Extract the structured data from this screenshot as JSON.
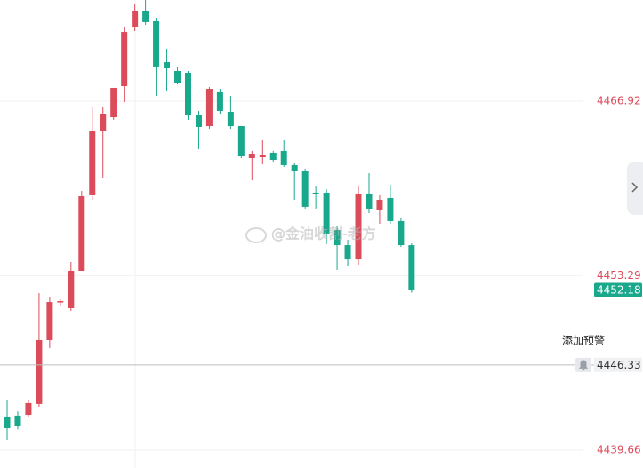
{
  "chart_data": {
    "type": "candlestick",
    "open": [
      4442.23,
      4442.37,
      4442.43,
      4443.27,
      4448.26,
      4451.24,
      4450.76,
      4453.67,
      4459.57,
      4464.63,
      4465.67,
      4468.1,
      4472.75,
      4474.0,
      4473.17,
      4469.97,
      4469.28,
      4469.14,
      4465.81,
      4464.98,
      4467.62,
      4466.09,
      4464.98,
      4462.48,
      4462.55,
      4462.9,
      4463.04,
      4461.93,
      4461.51,
      4459.78,
      4459.78,
      4456.86,
      4455.68,
      4454.57,
      4459.71,
      4458.46,
      4459.36,
      4457.56,
      4455.68
    ],
    "high": [
      4443.61,
      4442.7,
      4443.61,
      4451.94,
      4451.59,
      4451.45,
      4454.37,
      4459.91,
      4466.51,
      4466.51,
      4467.96,
      4472.75,
      4474.48,
      4474.83,
      4473.44,
      4471.01,
      4469.63,
      4469.28,
      4466.16,
      4468.03,
      4467.89,
      4467.34,
      4464.98,
      4463.04,
      4463.87,
      4463.04,
      4463.87,
      4462.14,
      4461.65,
      4460.26,
      4460.05,
      4457.14,
      4456.1,
      4460.26,
      4461.3,
      4459.57,
      4460.4,
      4457.84,
      4455.82
    ],
    "low": [
      4440.49,
      4441.3,
      4442.23,
      4443.06,
      4447.64,
      4450.9,
      4450.55,
      4453.67,
      4459.22,
      4460.96,
      4465.47,
      4466.85,
      4472.4,
      4472.89,
      4467.34,
      4467.75,
      4468.24,
      4465.47,
      4463.18,
      4464.77,
      4465.95,
      4464.77,
      4462.48,
      4460.75,
      4462.0,
      4462.2,
      4461.79,
      4459.22,
      4458.53,
      4458.53,
      4455.75,
      4453.74,
      4454.02,
      4454.16,
      4458.18,
      4457.35,
      4457.35,
      4455.55,
      4451.97
    ],
    "close": [
      4441.39,
      4441.53,
      4443.34,
      4448.26,
      4451.24,
      4451.31,
      4453.67,
      4459.5,
      4464.63,
      4465.95,
      4467.96,
      4472.33,
      4474.0,
      4473.1,
      4469.63,
      4469.49,
      4468.31,
      4465.81,
      4464.91,
      4467.89,
      4466.16,
      4464.98,
      4462.62,
      4462.83,
      4462.69,
      4462.34,
      4461.93,
      4461.44,
      4458.67,
      4459.64,
      4456.59,
      4455.68,
      4454.57,
      4459.71,
      4458.53,
      4459.22,
      4457.56,
      4455.68,
      4452.18
    ],
    "up_color": "#dc4b5a",
    "down_color": "#18a88c",
    "ylim": [
      4438.27,
      4474.83
    ],
    "yticks": [
      4466.92,
      4453.29,
      4439.66
    ],
    "grid": true,
    "last_price": 4452.18,
    "alert": {
      "label": "添加预警",
      "value": 4446.33
    },
    "watermark": "@金油收割-老方"
  }
}
